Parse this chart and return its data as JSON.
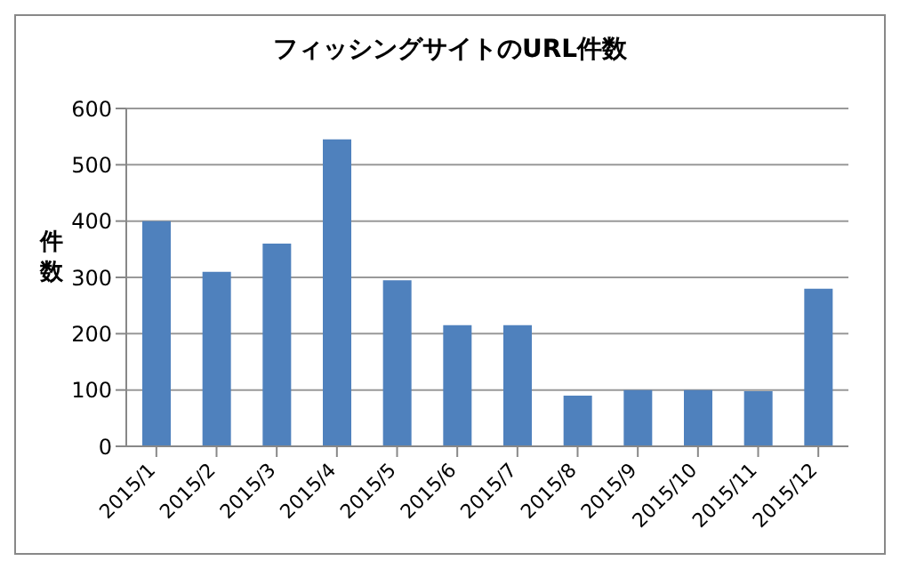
{
  "chart_data": {
    "type": "bar",
    "title": "フィッシングサイトのURL件数",
    "ylabel": "件数",
    "categories": [
      "2015/1",
      "2015/2",
      "2015/3",
      "2015/4",
      "2015/5",
      "2015/6",
      "2015/7",
      "2015/8",
      "2015/9",
      "2015/10",
      "2015/11",
      "2015/12"
    ],
    "values": [
      400,
      310,
      360,
      545,
      295,
      215,
      215,
      90,
      100,
      100,
      98,
      280
    ],
    "color": "#4f81bd",
    "ylim": [
      0,
      600
    ],
    "yticks": [
      0,
      100,
      200,
      300,
      400,
      500,
      600
    ],
    "grid": "y",
    "legend": false
  }
}
